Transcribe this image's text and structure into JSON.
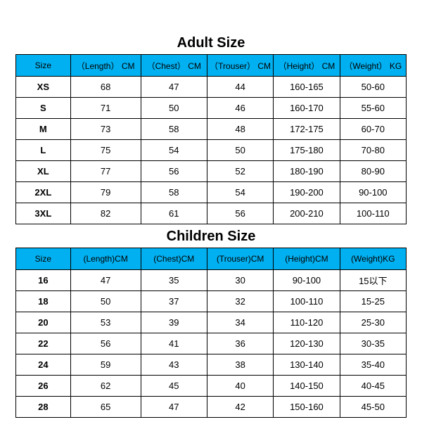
{
  "styles": {
    "header_bg": "#00b0f0",
    "header_fg": "#000000",
    "border_color": "#000000",
    "background": "#ffffff",
    "title_fontsize": 20,
    "cell_fontsize": 13,
    "header_fontsize": 12
  },
  "adult": {
    "title": "Adult Size",
    "columns": [
      "Size",
      "（Length） CM",
      "（Chest） CM",
      "（Trouser） CM",
      "（Height） CM",
      "（Weight） KG"
    ],
    "rows": [
      [
        "XS",
        "68",
        "47",
        "44",
        "160-165",
        "50-60"
      ],
      [
        "S",
        "71",
        "50",
        "46",
        "160-170",
        "55-60"
      ],
      [
        "M",
        "73",
        "58",
        "48",
        "172-175",
        "60-70"
      ],
      [
        "L",
        "75",
        "54",
        "50",
        "175-180",
        "70-80"
      ],
      [
        "XL",
        "77",
        "56",
        "52",
        "180-190",
        "80-90"
      ],
      [
        "2XL",
        "79",
        "58",
        "54",
        "190-200",
        "90-100"
      ],
      [
        "3XL",
        "82",
        "61",
        "56",
        "200-210",
        "100-110"
      ]
    ]
  },
  "children": {
    "title": "Children Size",
    "columns": [
      "Size",
      "(Length)CM",
      "(Chest)CM",
      "(Trouser)CM",
      "(Height)CM",
      "(Weight)KG"
    ],
    "rows": [
      [
        "16",
        "47",
        "35",
        "30",
        "90-100",
        "15以下"
      ],
      [
        "18",
        "50",
        "37",
        "32",
        "100-110",
        "15-25"
      ],
      [
        "20",
        "53",
        "39",
        "34",
        "110-120",
        "25-30"
      ],
      [
        "22",
        "56",
        "41",
        "36",
        "120-130",
        "30-35"
      ],
      [
        "24",
        "59",
        "43",
        "38",
        "130-140",
        "35-40"
      ],
      [
        "26",
        "62",
        "45",
        "40",
        "140-150",
        "40-45"
      ],
      [
        "28",
        "65",
        "47",
        "42",
        "150-160",
        "45-50"
      ]
    ]
  }
}
